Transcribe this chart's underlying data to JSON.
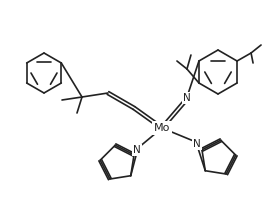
{
  "bg_color": "#ffffff",
  "line_color": "#222222",
  "line_width": 1.2,
  "fig_width": 2.75,
  "fig_height": 1.99,
  "dpi": 100,
  "Mo_label": "Mo",
  "N_label": "N"
}
